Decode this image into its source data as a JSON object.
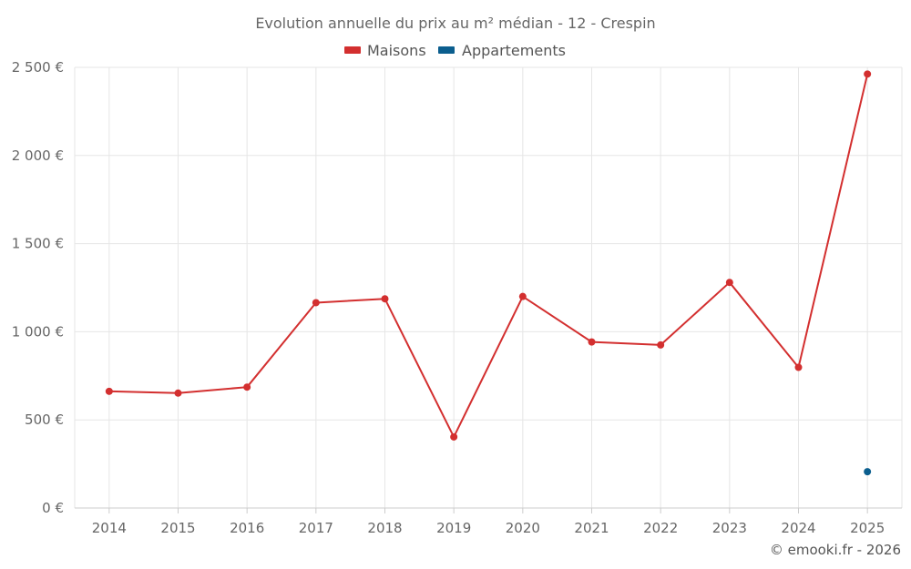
{
  "chart_data": {
    "type": "line",
    "title": "Evolution annuelle du prix au m² médian - 12 - Crespin",
    "categories": [
      "2014",
      "2015",
      "2016",
      "2017",
      "2018",
      "2019",
      "2020",
      "2021",
      "2022",
      "2023",
      "2024",
      "2025"
    ],
    "series": [
      {
        "name": "Maisons",
        "color": "#d32f2f",
        "values": [
          662,
          652,
          686,
          1165,
          1187,
          403,
          1200,
          942,
          925,
          1280,
          798,
          2462
        ]
      },
      {
        "name": "Appartements",
        "color": "#0b5e8e",
        "values": [
          null,
          null,
          null,
          null,
          null,
          null,
          null,
          null,
          null,
          null,
          null,
          206
        ]
      }
    ],
    "yticks": [
      0,
      500,
      1000,
      1500,
      2000,
      2500
    ],
    "ytick_labels": [
      "0 €",
      "500 €",
      "1 000 €",
      "1 500 €",
      "2 000 €",
      "2 500 €"
    ],
    "ylim": [
      0,
      2500
    ],
    "legend_position": "top-center",
    "grid": true
  },
  "credit": "© emooki.fr - 2026"
}
